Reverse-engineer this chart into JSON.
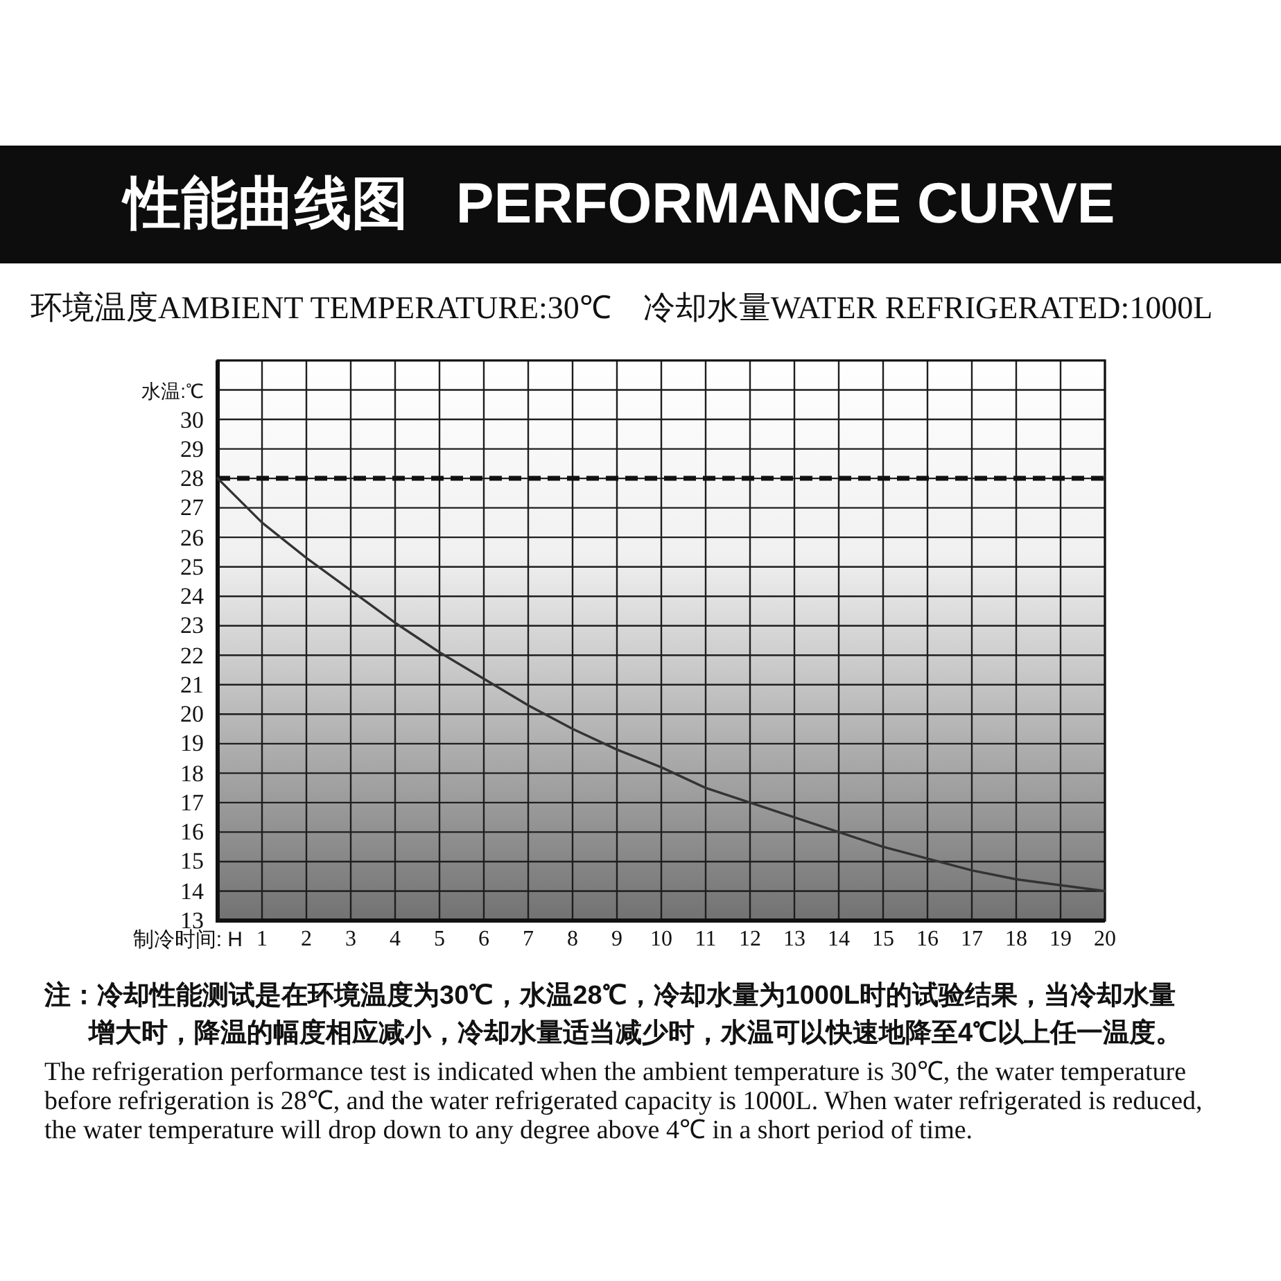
{
  "chart_data": {
    "type": "line",
    "title": "性能曲线图   PERFORMANCE CURVE",
    "subtitle": "环境温度AMBIENT TEMPERATURE:30℃    冷却水量WATER REFRIGERATED:1000L",
    "xlabel": "制冷时间: H",
    "ylabel": "水温:℃",
    "x": [
      0,
      1,
      2,
      3,
      4,
      5,
      6,
      7,
      8,
      9,
      10,
      11,
      12,
      13,
      14,
      15,
      16,
      17,
      18,
      19,
      20
    ],
    "series": [
      {
        "color": "#333333",
        "values": [
          28,
          26.5,
          25.3,
          24.2,
          23.1,
          22.1,
          21.2,
          20.3,
          19.5,
          18.8,
          18.2,
          17.5,
          17,
          16.5,
          16,
          15.5,
          15.1,
          14.7,
          14.4,
          14.2,
          14
        ]
      }
    ],
    "xlim": [
      0,
      20
    ],
    "xticks": [
      1,
      2,
      3,
      4,
      5,
      6,
      7,
      8,
      9,
      10,
      11,
      12,
      13,
      14,
      15,
      16,
      17,
      18,
      19,
      20
    ],
    "ylim": [
      13,
      32
    ],
    "yticks": [
      13,
      14,
      15,
      16,
      17,
      18,
      19,
      20,
      21,
      22,
      23,
      24,
      25,
      26,
      27,
      28,
      29,
      30,
      {
        "value": 31,
        "label": null
      }
    ],
    "grid": true,
    "ref_lines": [
      {
        "axis": "y",
        "value": 28,
        "color": "#111111",
        "line_style": "dashed"
      }
    ],
    "annotations": [
      "注：冷却性能测试是在环境温度为30℃，水温28℃，冷却水量为1000L时的试验结果，当冷却水量增大时，降温的幅度相应减小，冷却水量适当减少时，水温可以快速地降至4℃以上任一温度。",
      "The refrigeration performance test is indicated when the ambient temperature is 30℃, the water temperature before refrigeration is 28℃, and the water refrigerated capacity is 1000L. When water refrigerated is reduced, the water temperature will drop down to any degree above 4℃ in a short period of time."
    ]
  }
}
